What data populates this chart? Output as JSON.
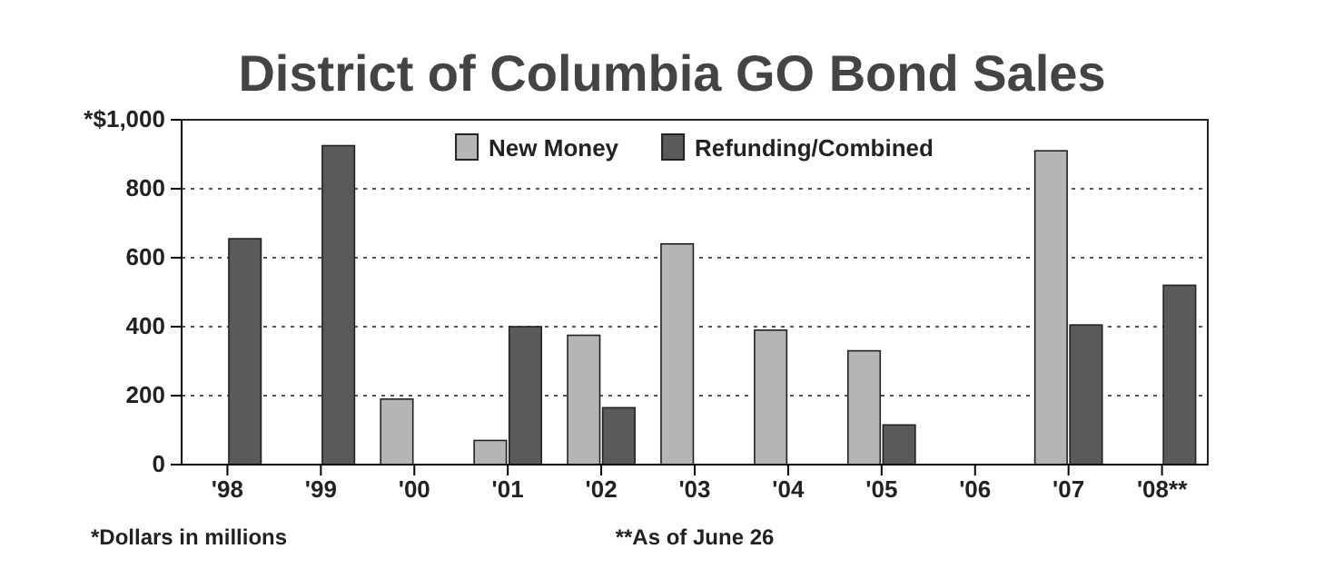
{
  "chart_data": {
    "type": "bar",
    "title": "District of Columbia GO Bond Sales",
    "categories": [
      "'98",
      "'99",
      "'00",
      "'01",
      "'02",
      "'03",
      "'04",
      "'05",
      "'06",
      "'07",
      "'08**"
    ],
    "series": [
      {
        "name": "New Money",
        "color": "#b5b5b5",
        "values": [
          null,
          null,
          190,
          70,
          375,
          640,
          390,
          330,
          null,
          910,
          null
        ]
      },
      {
        "name": "Refunding/Combined",
        "color": "#5a5a5a",
        "values": [
          655,
          925,
          null,
          400,
          165,
          null,
          null,
          115,
          null,
          405,
          520
        ]
      }
    ],
    "ylim": [
      0,
      1000
    ],
    "yticks": [
      0,
      200,
      400,
      600,
      800,
      {
        "value": 1000,
        "label": "*$1,000"
      }
    ],
    "grid": "y",
    "legend": "top",
    "annotations": [
      "*Dollars in millions",
      "**As of June 26"
    ]
  }
}
